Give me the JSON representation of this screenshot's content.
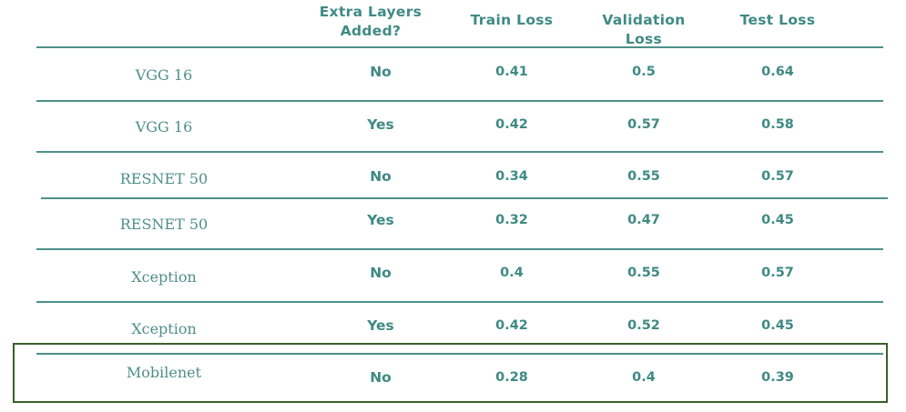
{
  "headers": {
    "model": "",
    "extra_layers": "Extra Layers Added?",
    "train_loss": "Train Loss",
    "validation_loss": "Validation Loss",
    "test_loss": "Test Loss"
  },
  "rows": [
    {
      "model": "VGG 16",
      "extra_layers": "No",
      "train_loss": "0.41",
      "validation_loss": "0.5",
      "test_loss": "0.64"
    },
    {
      "model": "VGG 16",
      "extra_layers": "Yes",
      "train_loss": "0.42",
      "validation_loss": "0.57",
      "test_loss": "0.58"
    },
    {
      "model": "RESNET 50",
      "extra_layers": "No",
      "train_loss": "0.34",
      "validation_loss": "0.55",
      "test_loss": "0.57"
    },
    {
      "model": "RESNET 50",
      "extra_layers": "Yes",
      "train_loss": "0.32",
      "validation_loss": "0.47",
      "test_loss": "0.45"
    },
    {
      "model": "Xception",
      "extra_layers": "No",
      "train_loss": "0.4",
      "validation_loss": "0.55",
      "test_loss": "0.57"
    },
    {
      "model": "Xception",
      "extra_layers": "Yes",
      "train_loss": "0.42",
      "validation_loss": "0.52",
      "test_loss": "0.45"
    },
    {
      "model": "Mobilenet",
      "extra_layers": "No",
      "train_loss": "0.28",
      "validation_loss": "0.4",
      "test_loss": "0.39"
    }
  ],
  "highlighted_row": "Mobilenet",
  "colors": {
    "text_teal": "#3f8a84",
    "rule_teal": "#4e8f89",
    "highlight_border": "#3a5f2a"
  }
}
